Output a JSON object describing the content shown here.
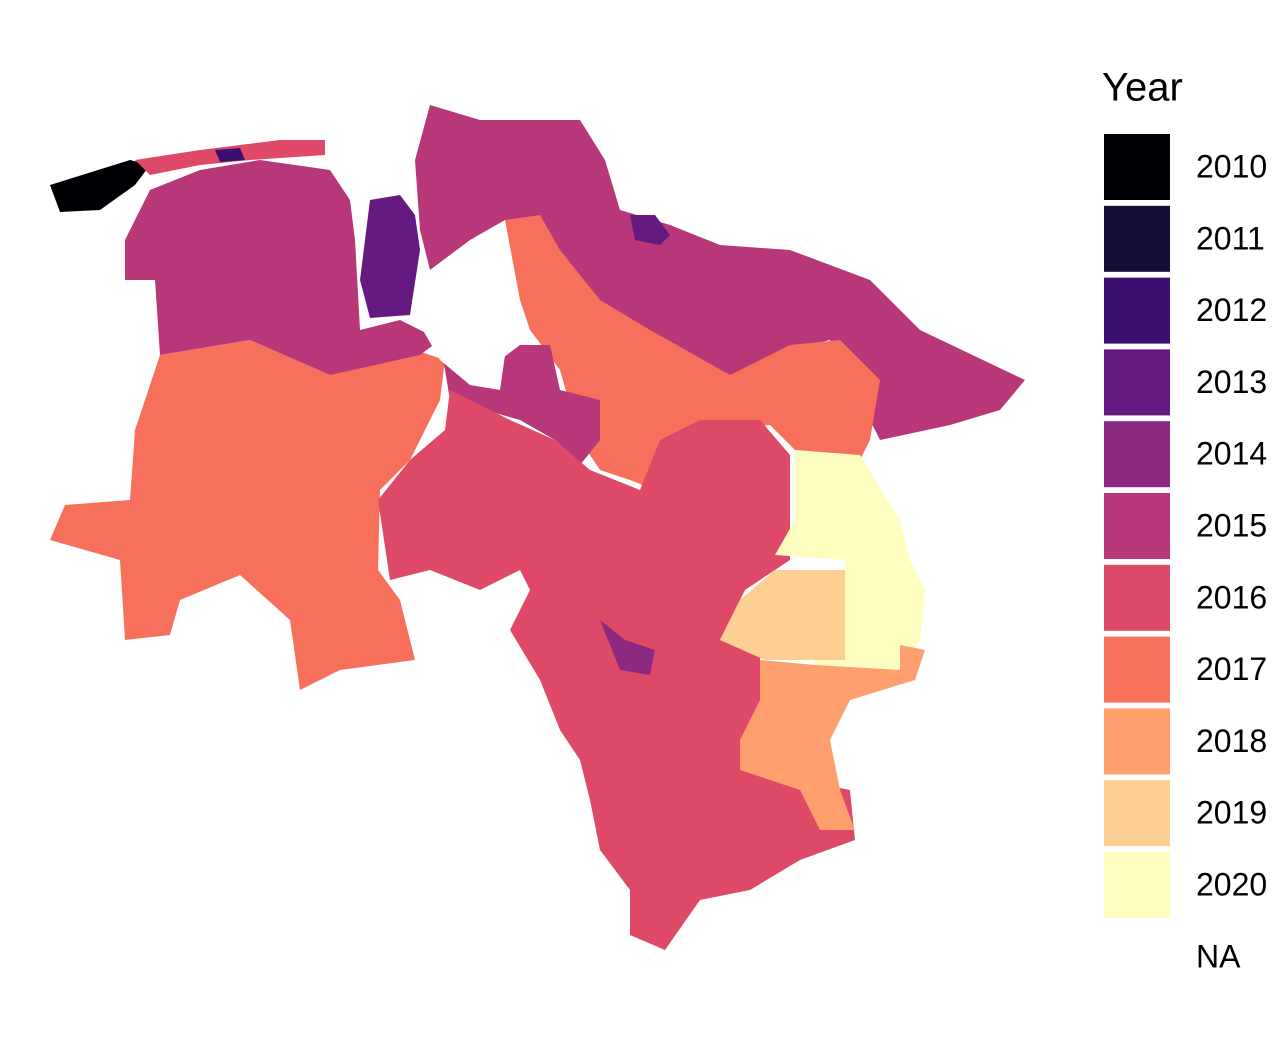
{
  "legend": {
    "title": "Year",
    "items": [
      {
        "label": "2010",
        "color": "#000004"
      },
      {
        "label": "2011",
        "color": "#140e36"
      },
      {
        "label": "2012",
        "color": "#3b0f70"
      },
      {
        "label": "2013",
        "color": "#641a80"
      },
      {
        "label": "2014",
        "color": "#8c2981"
      },
      {
        "label": "2015",
        "color": "#b73779"
      },
      {
        "label": "2016",
        "color": "#de4968"
      },
      {
        "label": "2017",
        "color": "#f7705c"
      },
      {
        "label": "2018",
        "color": "#fe9f6d"
      },
      {
        "label": "2019",
        "color": "#fecf92"
      },
      {
        "label": "2020",
        "color": "#fcfdbf"
      },
      {
        "label": "NA",
        "color": null
      }
    ]
  }
}
